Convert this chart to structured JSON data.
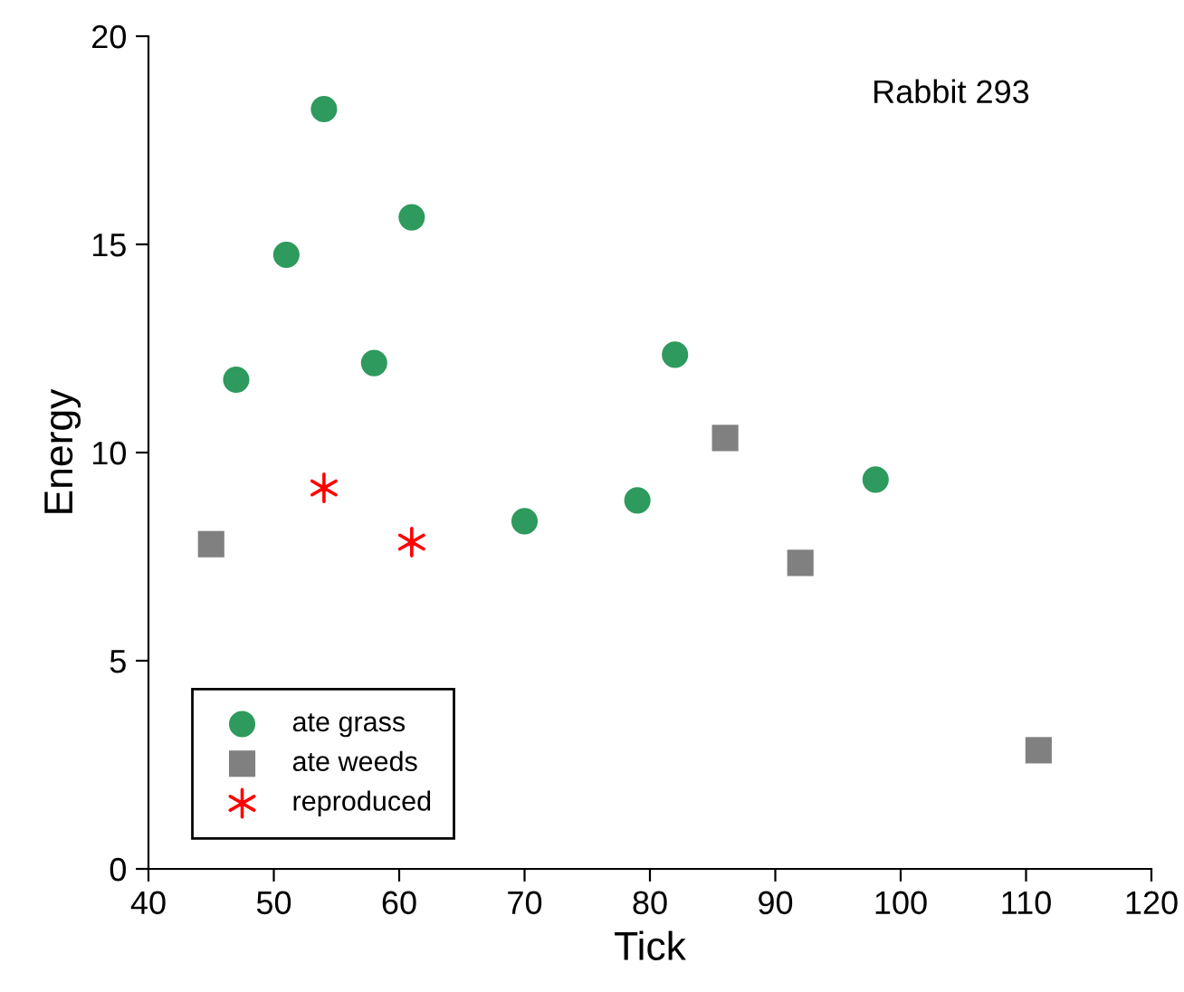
{
  "chart_data": {
    "type": "scatter",
    "xlabel": "Tick",
    "ylabel": "Energy",
    "annotations": [
      "Rabbit 293"
    ],
    "xlim": [
      40,
      120
    ],
    "xticks": [
      40,
      50,
      60,
      70,
      80,
      90,
      100,
      110,
      120
    ],
    "ylim": [
      0,
      20
    ],
    "yticks": [
      0,
      5,
      10,
      15,
      20
    ],
    "grid": false,
    "legend": "bottom left",
    "series": [
      {
        "name": "ate grass",
        "color": "#2e9a5e",
        "marker": "circle",
        "x": [
          54,
          51,
          61,
          47,
          58,
          82,
          70,
          79,
          98
        ],
        "values": [
          18.25,
          14.75,
          15.65,
          11.75,
          12.15,
          12.35,
          8.35,
          8.85,
          9.35
        ]
      },
      {
        "name": "ate weeds",
        "color": "#808080",
        "marker": "square",
        "x": [
          45,
          86,
          92,
          111
        ],
        "values": [
          7.8,
          10.35,
          7.35,
          2.85
        ]
      },
      {
        "name": "reproduced",
        "color": "#ff0000",
        "marker": "cross",
        "x": [
          54,
          61
        ],
        "values": [
          9.15,
          7.85
        ]
      }
    ]
  }
}
